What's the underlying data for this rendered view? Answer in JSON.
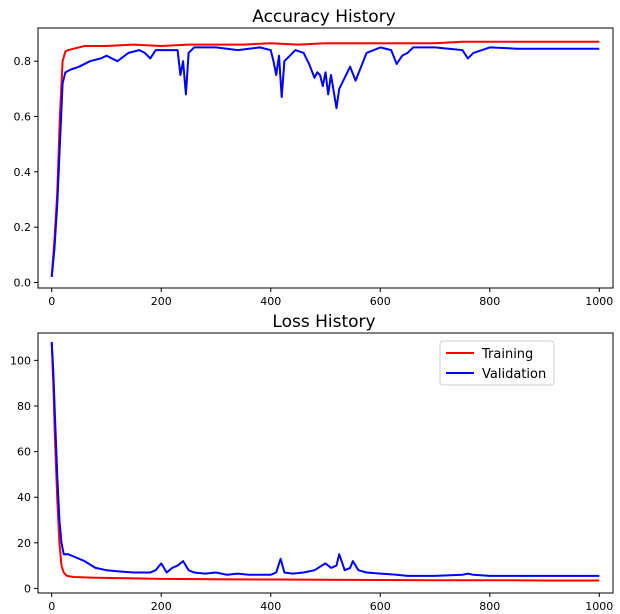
{
  "chart_data": [
    {
      "type": "line",
      "title": "Accuracy History",
      "xlabel": "",
      "ylabel": "",
      "xlim": [
        -25,
        1025
      ],
      "ylim": [
        -0.02,
        0.92
      ],
      "xticks": [
        0,
        200,
        400,
        600,
        800,
        1000
      ],
      "yticks": [
        0.0,
        0.2,
        0.4,
        0.6,
        0.8
      ],
      "ytick_labels": [
        "0.0",
        "0.2",
        "0.4",
        "0.6",
        "0.8"
      ],
      "xtick_labels": [
        "0",
        "200",
        "400",
        "600",
        "800",
        "1000"
      ],
      "grid": false,
      "series": [
        {
          "color": "#ff0000",
          "points": [
            [
              0,
              0.02
            ],
            [
              5,
              0.15
            ],
            [
              10,
              0.32
            ],
            [
              15,
              0.6
            ],
            [
              20,
              0.8
            ],
            [
              25,
              0.835
            ],
            [
              30,
              0.84
            ],
            [
              40,
              0.845
            ],
            [
              60,
              0.855
            ],
            [
              100,
              0.855
            ],
            [
              150,
              0.86
            ],
            [
              200,
              0.855
            ],
            [
              250,
              0.86
            ],
            [
              300,
              0.86
            ],
            [
              350,
              0.86
            ],
            [
              400,
              0.865
            ],
            [
              450,
              0.86
            ],
            [
              500,
              0.865
            ],
            [
              550,
              0.865
            ],
            [
              600,
              0.865
            ],
            [
              650,
              0.865
            ],
            [
              700,
              0.865
            ],
            [
              750,
              0.87
            ],
            [
              800,
              0.87
            ],
            [
              850,
              0.87
            ],
            [
              900,
              0.87
            ],
            [
              950,
              0.87
            ],
            [
              1000,
              0.87
            ]
          ]
        },
        {
          "color": "#0000ff",
          "points": [
            [
              0,
              0.02
            ],
            [
              5,
              0.12
            ],
            [
              10,
              0.28
            ],
            [
              15,
              0.5
            ],
            [
              20,
              0.72
            ],
            [
              25,
              0.76
            ],
            [
              35,
              0.77
            ],
            [
              50,
              0.78
            ],
            [
              70,
              0.8
            ],
            [
              90,
              0.81
            ],
            [
              100,
              0.82
            ],
            [
              120,
              0.8
            ],
            [
              140,
              0.83
            ],
            [
              160,
              0.84
            ],
            [
              170,
              0.83
            ],
            [
              180,
              0.81
            ],
            [
              190,
              0.84
            ],
            [
              200,
              0.84
            ],
            [
              230,
              0.84
            ],
            [
              235,
              0.75
            ],
            [
              240,
              0.8
            ],
            [
              245,
              0.68
            ],
            [
              250,
              0.83
            ],
            [
              260,
              0.85
            ],
            [
              300,
              0.85
            ],
            [
              340,
              0.84
            ],
            [
              380,
              0.85
            ],
            [
              400,
              0.84
            ],
            [
              405,
              0.8
            ],
            [
              410,
              0.75
            ],
            [
              415,
              0.82
            ],
            [
              420,
              0.67
            ],
            [
              425,
              0.8
            ],
            [
              435,
              0.82
            ],
            [
              445,
              0.84
            ],
            [
              460,
              0.83
            ],
            [
              470,
              0.79
            ],
            [
              480,
              0.74
            ],
            [
              485,
              0.76
            ],
            [
              490,
              0.75
            ],
            [
              495,
              0.71
            ],
            [
              500,
              0.76
            ],
            [
              505,
              0.68
            ],
            [
              510,
              0.75
            ],
            [
              520,
              0.63
            ],
            [
              525,
              0.7
            ],
            [
              535,
              0.74
            ],
            [
              545,
              0.78
            ],
            [
              555,
              0.73
            ],
            [
              565,
              0.78
            ],
            [
              575,
              0.83
            ],
            [
              600,
              0.85
            ],
            [
              620,
              0.84
            ],
            [
              630,
              0.79
            ],
            [
              640,
              0.82
            ],
            [
              650,
              0.83
            ],
            [
              660,
              0.85
            ],
            [
              700,
              0.85
            ],
            [
              750,
              0.84
            ],
            [
              760,
              0.81
            ],
            [
              770,
              0.83
            ],
            [
              800,
              0.85
            ],
            [
              850,
              0.845
            ],
            [
              900,
              0.845
            ],
            [
              950,
              0.845
            ],
            [
              1000,
              0.845
            ]
          ]
        }
      ]
    },
    {
      "type": "line",
      "title": "Loss History",
      "xlabel": "",
      "ylabel": "",
      "xlim": [
        -25,
        1025
      ],
      "ylim": [
        -2,
        112
      ],
      "xticks": [
        0,
        200,
        400,
        600,
        800,
        1000
      ],
      "yticks": [
        0,
        20,
        40,
        60,
        80,
        100
      ],
      "ytick_labels": [
        "0",
        "20",
        "40",
        "60",
        "80",
        "100"
      ],
      "xtick_labels": [
        "0",
        "200",
        "400",
        "600",
        "800",
        "1000"
      ],
      "grid": false,
      "legend_position": "top-right",
      "series": [
        {
          "name": "Training",
          "color": "#ff0000",
          "points": [
            [
              0,
              108
            ],
            [
              3,
              90
            ],
            [
              6,
              65
            ],
            [
              10,
              40
            ],
            [
              14,
              20
            ],
            [
              18,
              10
            ],
            [
              22,
              7
            ],
            [
              28,
              5.5
            ],
            [
              40,
              5
            ],
            [
              80,
              4.7
            ],
            [
              150,
              4.4
            ],
            [
              200,
              4.2
            ],
            [
              300,
              4
            ],
            [
              400,
              3.9
            ],
            [
              500,
              3.8
            ],
            [
              600,
              3.7
            ],
            [
              700,
              3.6
            ],
            [
              800,
              3.6
            ],
            [
              900,
              3.5
            ],
            [
              1000,
              3.5
            ]
          ]
        },
        {
          "name": "Validation",
          "color": "#0000ff",
          "points": [
            [
              0,
              108
            ],
            [
              3,
              95
            ],
            [
              6,
              75
            ],
            [
              10,
              50
            ],
            [
              14,
              30
            ],
            [
              18,
              20
            ],
            [
              22,
              15
            ],
            [
              30,
              15
            ],
            [
              40,
              14
            ],
            [
              60,
              12
            ],
            [
              80,
              9
            ],
            [
              100,
              8
            ],
            [
              120,
              7.5
            ],
            [
              150,
              7
            ],
            [
              180,
              7
            ],
            [
              190,
              8
            ],
            [
              200,
              11
            ],
            [
              210,
              7
            ],
            [
              220,
              9
            ],
            [
              230,
              10
            ],
            [
              240,
              12
            ],
            [
              250,
              8
            ],
            [
              260,
              7
            ],
            [
              280,
              6.5
            ],
            [
              300,
              7
            ],
            [
              320,
              6
            ],
            [
              340,
              6.5
            ],
            [
              360,
              6
            ],
            [
              380,
              6
            ],
            [
              400,
              6
            ],
            [
              410,
              7
            ],
            [
              418,
              13
            ],
            [
              425,
              7
            ],
            [
              440,
              6.5
            ],
            [
              460,
              7
            ],
            [
              480,
              8
            ],
            [
              500,
              11
            ],
            [
              510,
              9
            ],
            [
              520,
              10
            ],
            [
              525,
              15
            ],
            [
              535,
              8
            ],
            [
              545,
              9
            ],
            [
              550,
              12
            ],
            [
              560,
              8
            ],
            [
              575,
              7
            ],
            [
              600,
              6.5
            ],
            [
              630,
              6
            ],
            [
              650,
              5.5
            ],
            [
              700,
              5.5
            ],
            [
              750,
              6
            ],
            [
              760,
              6.5
            ],
            [
              770,
              6
            ],
            [
              800,
              5.5
            ],
            [
              900,
              5.5
            ],
            [
              1000,
              5.5
            ]
          ]
        }
      ]
    }
  ]
}
